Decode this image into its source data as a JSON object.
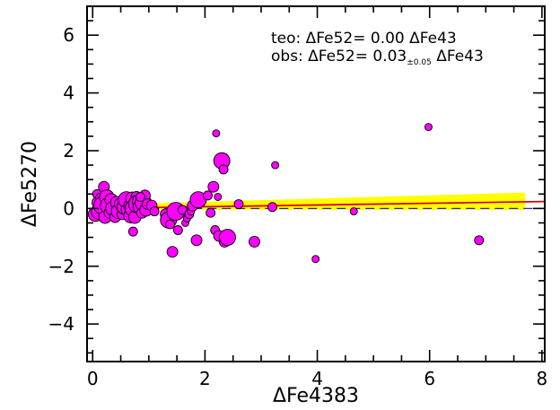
{
  "chart_data": {
    "type": "scatter",
    "xlabel": "ΔFe4383",
    "ylabel": "ΔFe5270",
    "xlim": [
      -0.1,
      8.05
    ],
    "ylim": [
      -5.3,
      7.0
    ],
    "xticks": [
      0,
      2,
      4,
      6,
      8
    ],
    "yticks": [
      -4,
      -2,
      0,
      2,
      4,
      6
    ],
    "xtick_labels": [
      "0",
      "2",
      "4",
      "6",
      "8"
    ],
    "ytick_labels": [
      "−4",
      "−2",
      "0",
      "2",
      "4",
      "6"
    ],
    "grid": false,
    "annotations": {
      "line1": "teo: ΔFe52= 0.00 ΔFe43",
      "line2_prefix": "obs: ΔFe52= 0.03",
      "line2_sub": "±0.05",
      "line2_suffix": " ΔFe43"
    },
    "lines": {
      "teo": {
        "slope": 0.0,
        "intercept": 0.0,
        "x": [
          0,
          8.05
        ],
        "color": "#2222cc",
        "style": "dashed"
      },
      "obs": {
        "slope": 0.03,
        "intercept": 0.0,
        "x": [
          0,
          8.05
        ],
        "color": "#dd0000",
        "style": "solid"
      },
      "band": {
        "x": [
          0,
          7.7
        ],
        "upper": [
          0.12,
          0.55
        ],
        "lower": [
          -0.04,
          -0.05
        ],
        "color": "#ffff00"
      }
    },
    "point_color": "#ff00ff",
    "points": [
      {
        "x": 0.05,
        "y": -0.2,
        "s": 8
      },
      {
        "x": 0.08,
        "y": 0.5,
        "s": 5
      },
      {
        "x": 0.1,
        "y": 0.2,
        "s": 7
      },
      {
        "x": 0.12,
        "y": -0.1,
        "s": 9
      },
      {
        "x": 0.15,
        "y": 0.35,
        "s": 6
      },
      {
        "x": 0.18,
        "y": 0.1,
        "s": 10
      },
      {
        "x": 0.2,
        "y": 0.75,
        "s": 6
      },
      {
        "x": 0.22,
        "y": -0.3,
        "s": 7
      },
      {
        "x": 0.25,
        "y": 0.4,
        "s": 8
      },
      {
        "x": 0.28,
        "y": 0.1,
        "s": 9
      },
      {
        "x": 0.3,
        "y": -0.15,
        "s": 6
      },
      {
        "x": 0.33,
        "y": 0.3,
        "s": 7
      },
      {
        "x": 0.36,
        "y": 0.0,
        "s": 8
      },
      {
        "x": 0.4,
        "y": -0.3,
        "s": 6
      },
      {
        "x": 0.43,
        "y": 0.2,
        "s": 7
      },
      {
        "x": 0.46,
        "y": -0.1,
        "s": 8
      },
      {
        "x": 0.5,
        "y": 0.15,
        "s": 7
      },
      {
        "x": 0.53,
        "y": -0.2,
        "s": 6
      },
      {
        "x": 0.56,
        "y": 0.05,
        "s": 8
      },
      {
        "x": 0.6,
        "y": 0.3,
        "s": 9
      },
      {
        "x": 0.62,
        "y": -0.05,
        "s": 7
      },
      {
        "x": 0.65,
        "y": 0.1,
        "s": 6
      },
      {
        "x": 0.68,
        "y": -0.25,
        "s": 8
      },
      {
        "x": 0.7,
        "y": 0.35,
        "s": 7
      },
      {
        "x": 0.72,
        "y": 0.0,
        "s": 9
      },
      {
        "x": 0.75,
        "y": -0.3,
        "s": 7
      },
      {
        "x": 0.78,
        "y": 0.4,
        "s": 6
      },
      {
        "x": 0.8,
        "y": 0.15,
        "s": 10
      },
      {
        "x": 0.82,
        "y": 0.25,
        "s": 7
      },
      {
        "x": 0.85,
        "y": 0.05,
        "s": 8
      },
      {
        "x": 0.88,
        "y": -0.15,
        "s": 6
      },
      {
        "x": 0.9,
        "y": 0.2,
        "s": 9
      },
      {
        "x": 0.93,
        "y": 0.45,
        "s": 6
      },
      {
        "x": 0.95,
        "y": -0.05,
        "s": 7
      },
      {
        "x": 0.98,
        "y": 0.15,
        "s": 6
      },
      {
        "x": 0.72,
        "y": -0.8,
        "s": 5
      },
      {
        "x": 0.85,
        "y": 0.4,
        "s": 5
      },
      {
        "x": 1.05,
        "y": 0.1,
        "s": 6
      },
      {
        "x": 1.1,
        "y": -0.1,
        "s": 5
      },
      {
        "x": 1.3,
        "y": -0.2,
        "s": 6
      },
      {
        "x": 1.35,
        "y": -0.4,
        "s": 9
      },
      {
        "x": 1.38,
        "y": -0.55,
        "s": 5
      },
      {
        "x": 1.42,
        "y": -1.5,
        "s": 6
      },
      {
        "x": 1.48,
        "y": -0.1,
        "s": 10
      },
      {
        "x": 1.52,
        "y": -0.75,
        "s": 5
      },
      {
        "x": 1.6,
        "y": -0.05,
        "s": 5
      },
      {
        "x": 1.65,
        "y": -0.5,
        "s": 4
      },
      {
        "x": 1.68,
        "y": -0.35,
        "s": 4
      },
      {
        "x": 1.72,
        "y": -0.2,
        "s": 5
      },
      {
        "x": 1.75,
        "y": -0.1,
        "s": 4
      },
      {
        "x": 1.78,
        "y": 0.1,
        "s": 6
      },
      {
        "x": 1.85,
        "y": -1.1,
        "s": 6
      },
      {
        "x": 1.88,
        "y": 0.3,
        "s": 9
      },
      {
        "x": 2.05,
        "y": 0.45,
        "s": 5
      },
      {
        "x": 2.1,
        "y": -0.15,
        "s": 5
      },
      {
        "x": 2.15,
        "y": 0.75,
        "s": 6
      },
      {
        "x": 2.18,
        "y": -0.75,
        "s": 5
      },
      {
        "x": 2.2,
        "y": 2.6,
        "s": 4
      },
      {
        "x": 2.23,
        "y": 0.4,
        "s": 4
      },
      {
        "x": 2.25,
        "y": -0.95,
        "s": 6
      },
      {
        "x": 2.3,
        "y": 1.65,
        "s": 9
      },
      {
        "x": 2.33,
        "y": 1.35,
        "s": 5
      },
      {
        "x": 2.35,
        "y": -1.15,
        "s": 6
      },
      {
        "x": 2.4,
        "y": -1.0,
        "s": 9
      },
      {
        "x": 2.6,
        "y": 0.15,
        "s": 5
      },
      {
        "x": 2.88,
        "y": -1.15,
        "s": 6
      },
      {
        "x": 3.2,
        "y": 0.05,
        "s": 5
      },
      {
        "x": 3.25,
        "y": 1.5,
        "s": 4
      },
      {
        "x": 3.97,
        "y": -1.75,
        "s": 4
      },
      {
        "x": 4.65,
        "y": -0.1,
        "s": 4
      },
      {
        "x": 5.98,
        "y": 2.82,
        "s": 4
      },
      {
        "x": 6.88,
        "y": -1.1,
        "s": 5
      }
    ]
  }
}
